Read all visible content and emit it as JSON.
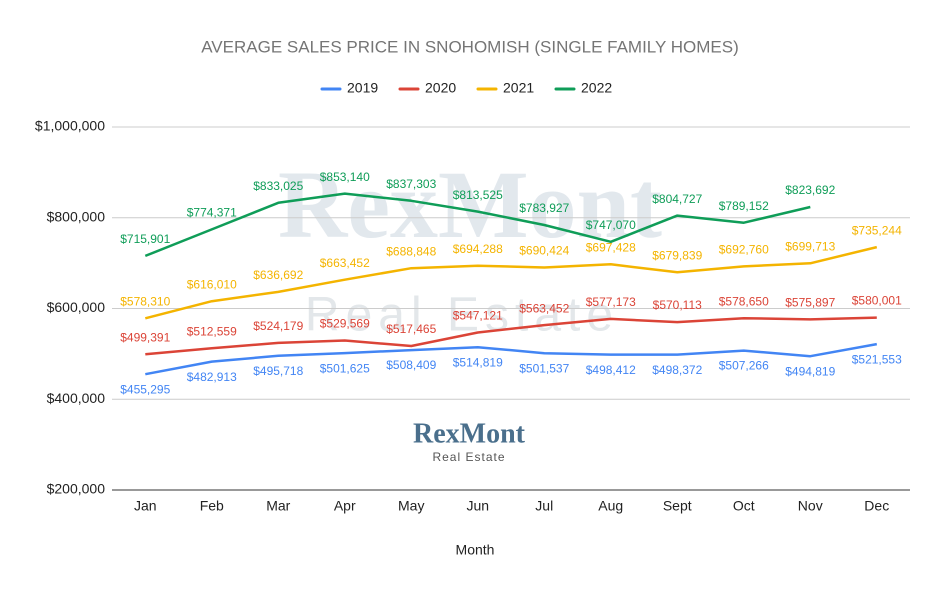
{
  "chart_data": {
    "type": "line",
    "title": "AVERAGE SALES PRICE IN SNOHOMISH (SINGLE FAMILY HOMES)",
    "x_label": "Month",
    "watermark": {
      "brand": "RexMont",
      "tagline": "Real Estate"
    },
    "categories": [
      "Jan",
      "Feb",
      "Mar",
      "Apr",
      "May",
      "Jun",
      "Jul",
      "Aug",
      "Sept",
      "Oct",
      "Nov",
      "Dec"
    ],
    "ylim": [
      200000,
      1000000
    ],
    "yticks": [
      {
        "value": 200000,
        "label": "$200,000"
      },
      {
        "value": 400000,
        "label": "$400,000"
      },
      {
        "value": 600000,
        "label": "$600,000"
      },
      {
        "value": 800000,
        "label": "$800,000"
      },
      {
        "value": 1000000,
        "label": "$1,000,000"
      }
    ],
    "grid": true,
    "legend": "top",
    "series": [
      {
        "name": "2019",
        "color": "#4285f4",
        "values": [
          455295,
          482913,
          495718,
          501625,
          508409,
          514819,
          501537,
          498412,
          498372,
          507266,
          494819,
          521553
        ],
        "value_labels": [
          "$455,295",
          "$482,913",
          "$495,718",
          "$501,625",
          "$508,409",
          "$514,819",
          "$501,537",
          "$498,412",
          "$498,372",
          "$507,266",
          "$494,819",
          "$521,553"
        ]
      },
      {
        "name": "2020",
        "color": "#db4437",
        "values": [
          499391,
          512559,
          524179,
          529569,
          517465,
          547121,
          563452,
          577173,
          570113,
          578650,
          575897,
          580001
        ],
        "value_labels": [
          "$499,391",
          "$512,559",
          "$524,179",
          "$529,569",
          "$517,465",
          "$547,121",
          "$563,452",
          "$577,173",
          "$570,113",
          "$578,650",
          "$575,897",
          "$580,001"
        ]
      },
      {
        "name": "2021",
        "color": "#f4b400",
        "values": [
          578310,
          616010,
          636692,
          663452,
          688848,
          694288,
          690424,
          697428,
          679839,
          692760,
          699713,
          735244
        ],
        "value_labels": [
          "$578,310",
          "$616,010",
          "$636,692",
          "$663,452",
          "$688,848",
          "$694,288",
          "$690,424",
          "$697,428",
          "$679,839",
          "$692,760",
          "$699,713",
          "$735,244"
        ]
      },
      {
        "name": "2022",
        "color": "#0f9d58",
        "values": [
          715901,
          774371,
          833025,
          853140,
          837303,
          813525,
          783927,
          747070,
          804727,
          789152,
          823692,
          null
        ],
        "value_labels": [
          "$715,901",
          "$774,371",
          "$833,025",
          "$853,140",
          "$837,303",
          "$813,525",
          "$783,927",
          "$747,070",
          "$804,727",
          "$789,152",
          "$823,692",
          null
        ]
      }
    ]
  }
}
